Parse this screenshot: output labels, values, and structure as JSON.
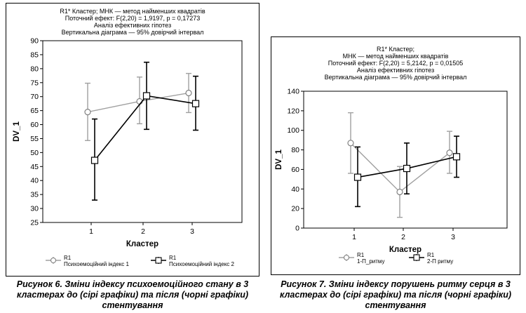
{
  "figures": [
    {
      "header": [
        "R1* Кластер; МНК — метод найменших квадратів",
        "Поточний ефект: F(2,20) = 1,9197, p = 0,17273",
        "Аналіз ефективних гіпотез",
        "Вертикальна діаграма — 95% довірчий інтервал"
      ],
      "legend_items": [
        {
          "title": "R1",
          "label": "Психоемоційний індекс 1"
        },
        {
          "title": "R1",
          "label": "Психоемоційний індекс 2"
        }
      ],
      "caption": "Рисунок 6. Зміни індексу психоемоційного стану в 3 кластерах до (сірі графіки) та після (чорні графіки) стентування",
      "colors": {
        "before": "#a0a0a0",
        "after": "#000000"
      }
    },
    {
      "header": [
        "R1* Кластер;",
        "МНК — метод найменших квадратів",
        "Поточний ефект: F(2,20) = 5,2142, p = 0,01505",
        "Аналіз ефективних гіпотез",
        "Вертикальна діаграма — 95% довірчий інтервал"
      ],
      "legend_items": [
        {
          "title": "R1",
          "label": "1-П_ритму"
        },
        {
          "title": "R1",
          "label": "2-П ритму"
        }
      ],
      "caption": "Рисунок 7. Зміни індексу порушень ритму серця в 3 кластерах до (сірі графіки) та після (чорні графіки) стентування",
      "colors": {
        "before": "#a0a0a0",
        "after": "#000000"
      }
    }
  ],
  "chart_data": [
    {
      "type": "line",
      "xlabel": "Кластер",
      "ylabel": "DV_1",
      "categories": [
        "1",
        "2",
        "3"
      ],
      "ylim": [
        25,
        90
      ],
      "yticks": [
        25,
        30,
        35,
        40,
        45,
        50,
        55,
        60,
        65,
        70,
        75,
        80,
        85,
        90
      ],
      "series": [
        {
          "name": "Психоемоційний індекс 1",
          "values": [
            64.5,
            68.3,
            71.3
          ],
          "lower": [
            54.3,
            60.3,
            64.3
          ],
          "upper": [
            74.8,
            77.0,
            78.3
          ]
        },
        {
          "name": "Психоемоційний індекс 2",
          "values": [
            47.2,
            70.3,
            67.5
          ],
          "lower": [
            33.0,
            58.3,
            58.0
          ],
          "upper": [
            62.0,
            82.3,
            77.3
          ]
        }
      ]
    },
    {
      "type": "line",
      "xlabel": "Кластер",
      "ylabel": "DV_1",
      "categories": [
        "1",
        "2",
        "3"
      ],
      "ylim": [
        0,
        140
      ],
      "yticks": [
        0,
        20,
        40,
        60,
        80,
        100,
        120,
        140
      ],
      "series": [
        {
          "name": "1-П_ритму",
          "values": [
            87,
            37,
            77
          ],
          "lower": [
            56,
            11,
            56
          ],
          "upper": [
            118,
            63,
            99
          ]
        },
        {
          "name": "2-П ритму",
          "values": [
            52,
            61,
            73
          ],
          "lower": [
            22,
            35,
            52
          ],
          "upper": [
            83,
            87,
            94
          ]
        }
      ]
    }
  ]
}
